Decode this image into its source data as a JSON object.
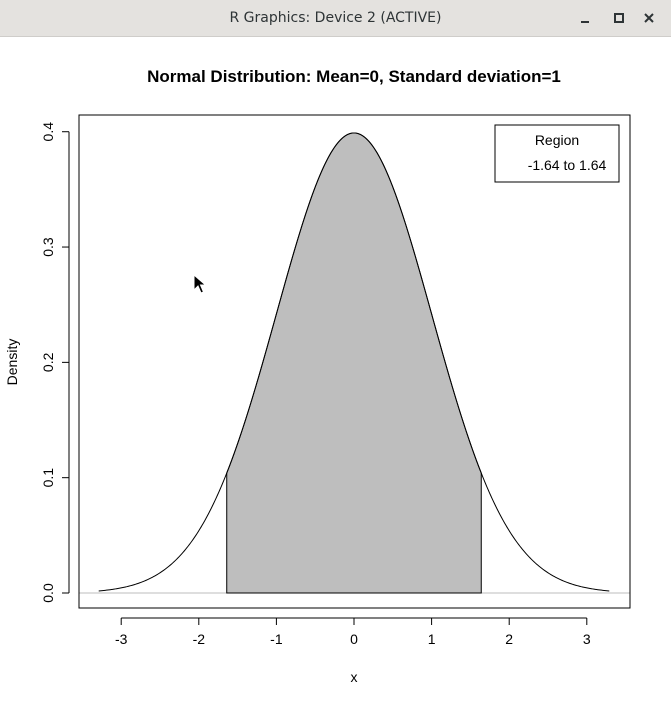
{
  "window": {
    "title": "R Graphics: Device 2 (ACTIVE)",
    "controls": [
      "minimize-icon",
      "maximize-icon",
      "close-icon"
    ]
  },
  "colors": {
    "shade": "#bebebe",
    "curve": "#000000",
    "baseline": "#bebebe",
    "titlebar": "#e4e2df"
  },
  "chart_data": {
    "type": "area",
    "title": "Normal Distribution:  Mean=0, Standard deviation=1",
    "xlabel": "x",
    "ylabel": "Density",
    "xlim": [
      -3.5,
      3.5
    ],
    "ylim": [
      0,
      0.4
    ],
    "x_ticks": [
      "-3",
      "-2",
      "-1",
      "0",
      "1",
      "2",
      "3"
    ],
    "y_ticks": [
      "0.0",
      "0.1",
      "0.2",
      "0.3",
      "0.4"
    ],
    "mean": 0,
    "sd": 1,
    "curve_range": [
      -3.29,
      3.29
    ],
    "shaded_region": [
      -1.64,
      1.64
    ],
    "legend": {
      "title": "Region",
      "entries": [
        "-1.64 to 1.64"
      ],
      "position": "top-right"
    },
    "grid": false
  }
}
